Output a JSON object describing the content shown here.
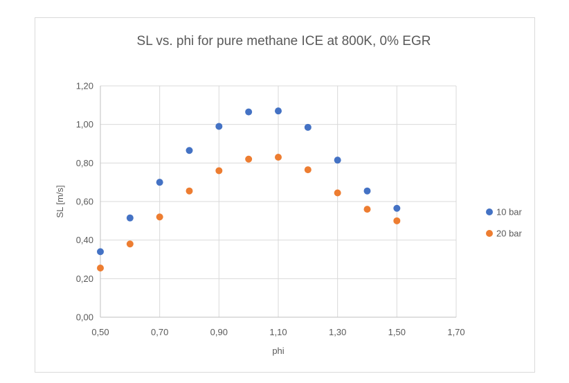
{
  "chart_data": {
    "type": "scatter",
    "title": "SL vs. phi for pure methane ICE at 800K, 0% EGR",
    "xlabel": "phi",
    "ylabel": "SL [m/s]",
    "xlim": [
      0.5,
      1.7
    ],
    "ylim": [
      0.0,
      1.2
    ],
    "x_ticks": [
      "0,50",
      "0,70",
      "0,90",
      "1,10",
      "1,30",
      "1,50",
      "1,70"
    ],
    "x_tick_values": [
      0.5,
      0.7,
      0.9,
      1.1,
      1.3,
      1.5,
      1.7
    ],
    "y_ticks": [
      "0,00",
      "0,20",
      "0,40",
      "0,60",
      "0,80",
      "1,00",
      "1,20"
    ],
    "y_tick_values": [
      0.0,
      0.2,
      0.4,
      0.6,
      0.8,
      1.0,
      1.2
    ],
    "grid": true,
    "legend_position": "right",
    "series": [
      {
        "name": "10 bar",
        "color": "#4472c4",
        "x": [
          0.5,
          0.6,
          0.7,
          0.8,
          0.9,
          1.0,
          1.1,
          1.2,
          1.3,
          1.4,
          1.5
        ],
        "y": [
          0.34,
          0.515,
          0.7,
          0.865,
          0.99,
          1.065,
          1.07,
          0.985,
          0.815,
          0.655,
          0.565
        ]
      },
      {
        "name": "20 bar",
        "color": "#ed7d31",
        "x": [
          0.5,
          0.6,
          0.7,
          0.8,
          0.9,
          1.0,
          1.1,
          1.2,
          1.3,
          1.4,
          1.5
        ],
        "y": [
          0.255,
          0.38,
          0.52,
          0.655,
          0.76,
          0.82,
          0.83,
          0.765,
          0.645,
          0.56,
          0.5
        ]
      }
    ]
  }
}
